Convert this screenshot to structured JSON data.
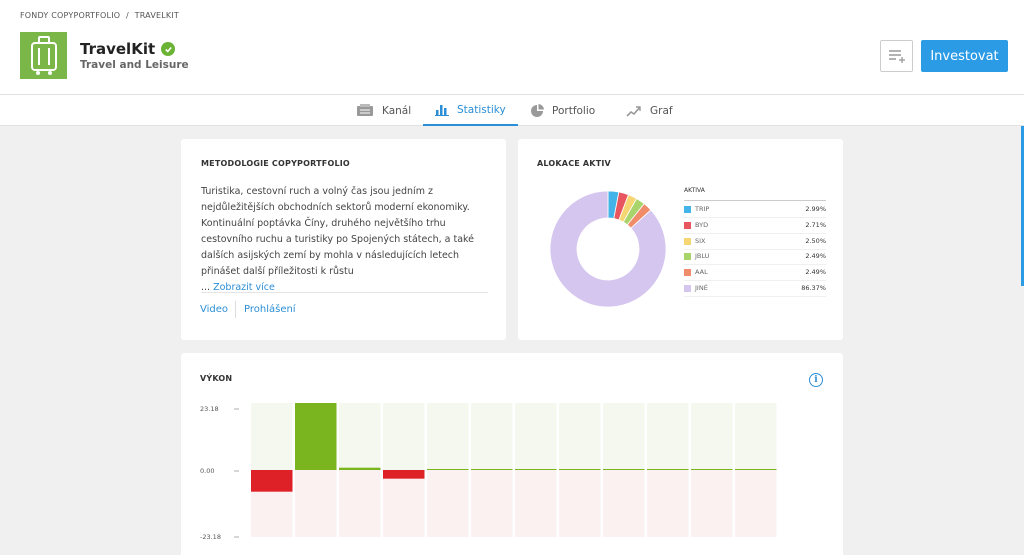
{
  "breadcrumb": {
    "parent": "FONDY COPYPORTFOLIO",
    "separator": "/",
    "current": "TRAVELKIT"
  },
  "fund": {
    "title": "TravelKit",
    "subtitle": "Travel and Leisure"
  },
  "actions": {
    "invest_label": "Investovat"
  },
  "tabs": [
    {
      "label": "Kanál",
      "icon": "channel-icon",
      "active": false
    },
    {
      "label": "Statistiky",
      "icon": "bar-chart-icon",
      "active": true
    },
    {
      "label": "Portfolio",
      "icon": "pie-chart-icon",
      "active": false
    },
    {
      "label": "Graf",
      "icon": "line-chart-icon",
      "active": false
    }
  ],
  "methodology": {
    "title": "METODOLOGIE COPYPORTFOLIO",
    "text": "Turistika, cestovní ruch a volný čas jsou jedním z nejdůležitějších obchodních sektorů moderní ekonomiky. Kontinuální poptávka Číny, druhého největšího trhu cestovního ruchu a turistiky po Spojených státech, a také dalších asijských zemí by mohla v následujících letech přinášet další příležitosti k růstu",
    "more_prefix": "...",
    "more_link": "Zobrazit více",
    "link_video": "Video",
    "link_disclaimer": "Prohlášení"
  },
  "allocation": {
    "title": "ALOKACE AKTIV",
    "legend_header": "AKTIVA",
    "items": [
      {
        "name": "TRIP",
        "pct_label": "2.99%",
        "value": 2.99,
        "color": "#44b4e8"
      },
      {
        "name": "BYD",
        "pct_label": "2.71%",
        "value": 2.71,
        "color": "#e8575f"
      },
      {
        "name": "SIX",
        "pct_label": "2.50%",
        "value": 2.5,
        "color": "#f5d672"
      },
      {
        "name": "JBLU",
        "pct_label": "2.49%",
        "value": 2.49,
        "color": "#a9d36b"
      },
      {
        "name": "AAL",
        "pct_label": "2.49%",
        "value": 2.49,
        "color": "#f08c6a"
      },
      {
        "name": "JINÉ",
        "pct_label": "86.37%",
        "value": 86.37,
        "color": "#d5c6ef"
      }
    ]
  },
  "performance": {
    "title": "VÝKON",
    "chart_data": {
      "type": "bar",
      "y_ticks": [
        "23.18",
        "0.00",
        "-23.18"
      ],
      "ylim": [
        -23.18,
        23.18
      ],
      "values": [
        -7.5,
        23.18,
        0.8,
        -3.0,
        0.3,
        0.3,
        0.3,
        0.3,
        0.3,
        0.3,
        0.3,
        0.3
      ],
      "colors": {
        "positive": "#7ab41e",
        "negative": "#de2027",
        "positive_bg": "#f4f8ef",
        "negative_bg": "#fbf1f0"
      }
    }
  }
}
